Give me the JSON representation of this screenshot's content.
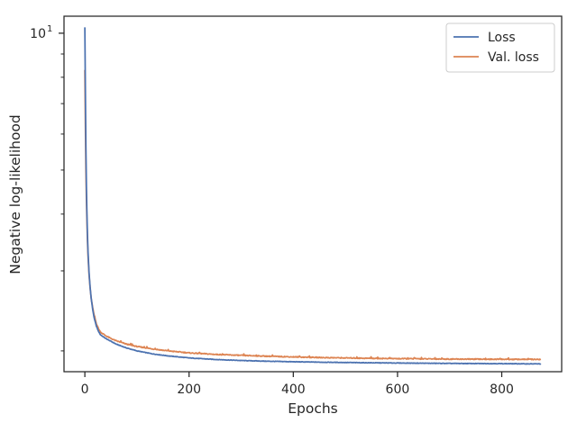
{
  "chart_data": {
    "type": "line",
    "title": "",
    "xlabel": "Epochs",
    "ylabel": "Negative log-likelihood",
    "yscale": "log",
    "xlim": [
      -40,
      915
    ],
    "ylim": [
      1.8,
      10.9
    ],
    "grid": false,
    "legend_position": "top-right",
    "x_ticks": [
      0,
      200,
      400,
      600,
      800
    ],
    "x_tick_labels": [
      "0",
      "200",
      "400",
      "600",
      "800"
    ],
    "y_ticks": [
      10
    ],
    "y_tick_labels": [
      {
        "base": "10",
        "exp": "1"
      }
    ],
    "series": [
      {
        "name": "Loss",
        "color": "#4c72b0",
        "x": [
          0,
          1,
          2,
          3,
          4,
          5,
          6,
          8,
          10,
          12,
          15,
          18,
          22,
          26,
          30,
          40,
          50,
          60,
          80,
          100,
          130,
          160,
          200,
          250,
          300,
          350,
          400,
          450,
          500,
          550,
          600,
          650,
          700,
          750,
          800,
          850,
          875
        ],
        "y": [
          10.3,
          7.5,
          5.6,
          4.6,
          4.0,
          3.6,
          3.32,
          2.98,
          2.77,
          2.62,
          2.47,
          2.36,
          2.27,
          2.21,
          2.17,
          2.13,
          2.1,
          2.07,
          2.03,
          2.0,
          1.97,
          1.95,
          1.93,
          1.915,
          1.905,
          1.898,
          1.893,
          1.889,
          1.886,
          1.883,
          1.881,
          1.879,
          1.877,
          1.876,
          1.875,
          1.873,
          1.873
        ]
      },
      {
        "name": "Val. loss",
        "color": "#dd8452",
        "x": [
          0,
          1,
          2,
          3,
          4,
          5,
          6,
          8,
          10,
          12,
          15,
          18,
          22,
          26,
          30,
          40,
          50,
          60,
          80,
          100,
          130,
          160,
          200,
          250,
          300,
          350,
          400,
          450,
          500,
          550,
          600,
          650,
          700,
          750,
          800,
          850,
          875
        ],
        "y": [
          8.3,
          6.3,
          5.0,
          4.3,
          3.85,
          3.5,
          3.25,
          2.95,
          2.76,
          2.62,
          2.49,
          2.39,
          2.3,
          2.24,
          2.2,
          2.16,
          2.13,
          2.105,
          2.07,
          2.045,
          2.02,
          2.0,
          1.98,
          1.965,
          1.955,
          1.947,
          1.94,
          1.934,
          1.93,
          1.926,
          1.923,
          1.921,
          1.919,
          1.918,
          1.917,
          1.916,
          1.916
        ]
      }
    ]
  }
}
